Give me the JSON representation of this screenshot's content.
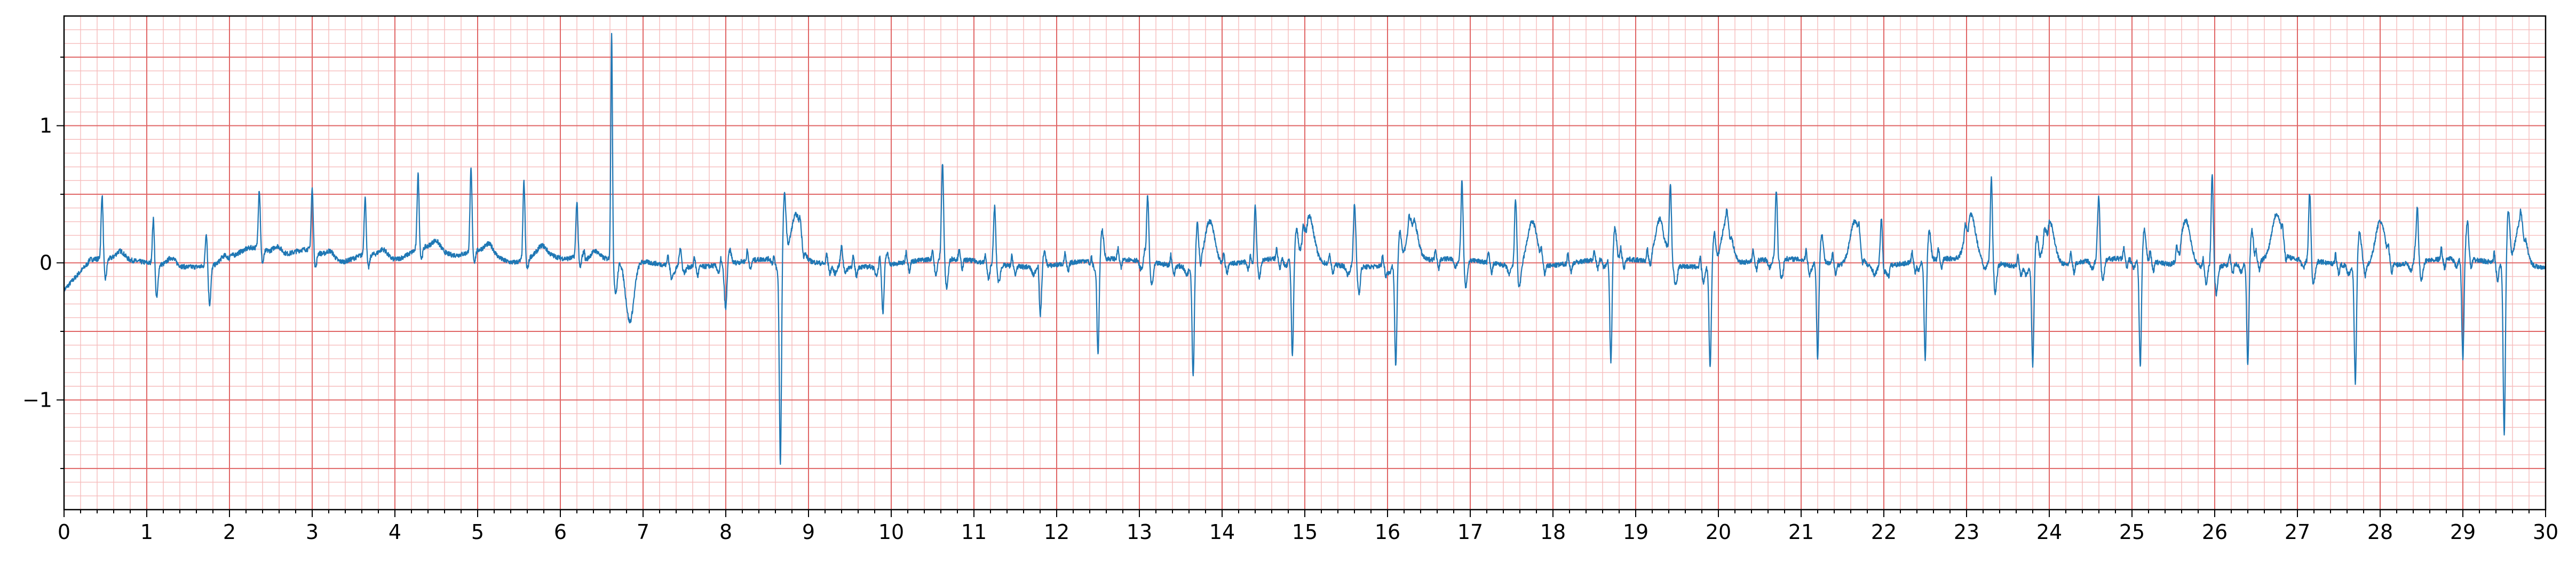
{
  "chart_data": {
    "type": "line",
    "title": "",
    "xlabel": "",
    "ylabel": "",
    "xlim": [
      0,
      30
    ],
    "ylim": [
      -1.8,
      1.8
    ],
    "x_ticks": [
      0,
      1,
      2,
      3,
      4,
      5,
      6,
      7,
      8,
      9,
      10,
      11,
      12,
      13,
      14,
      15,
      16,
      17,
      18,
      19,
      20,
      21,
      22,
      23,
      24,
      25,
      26,
      27,
      28,
      29,
      30
    ],
    "y_ticks": [
      {
        "value": 1,
        "label": "1"
      },
      {
        "value": 0,
        "label": "0"
      },
      {
        "value": -1,
        "label": "−1"
      }
    ],
    "grid": {
      "major_x": 1,
      "minor_x": 0.2,
      "major_y": 0.5,
      "minor_y": 0.1,
      "major_color": "#e06666",
      "minor_color": "#f6bcbc"
    },
    "line_color": "#1f77b4",
    "series": [
      {
        "name": "",
        "beats_segment1": {
          "x": [
            0.46,
            1.08,
            1.72,
            2.36,
            3.0,
            3.64,
            4.28,
            4.92,
            5.56,
            6.2
          ],
          "r": [
            0.47,
            0.33,
            0.25,
            0.43,
            0.45,
            0.42,
            0.55,
            0.6,
            0.57,
            0.4
          ],
          "s": [
            -0.15,
            -0.25,
            -0.28,
            -0.1,
            -0.12,
            -0.1,
            -0.08,
            -0.08,
            -0.08,
            -0.1
          ]
        },
        "tall_spike": {
          "x": 6.62,
          "peak": 1.65,
          "trough": -0.45
        },
        "segment2_spikes": [
          {
            "x": 7.45,
            "v": 0.14
          },
          {
            "x": 8.0,
            "v": -0.32
          },
          {
            "x": 8.66,
            "v": -1.5
          },
          {
            "x": 9.4,
            "v": 0.14
          },
          {
            "x": 9.9,
            "v": -0.28
          },
          {
            "x": 10.62,
            "v": 0.7
          },
          {
            "x": 11.25,
            "v": 0.42
          },
          {
            "x": 11.8,
            "v": -0.35
          },
          {
            "x": 12.5,
            "v": -0.7
          },
          {
            "x": 13.1,
            "v": 0.55
          },
          {
            "x": 13.65,
            "v": -0.8
          },
          {
            "x": 14.4,
            "v": 0.42
          },
          {
            "x": 14.85,
            "v": -0.7
          },
          {
            "x": 15.6,
            "v": 0.45
          },
          {
            "x": 16.1,
            "v": -0.75
          },
          {
            "x": 16.9,
            "v": 0.5
          },
          {
            "x": 17.55,
            "v": 0.45
          },
          {
            "x": 18.7,
            "v": -0.75
          },
          {
            "x": 19.42,
            "v": 0.55
          },
          {
            "x": 19.9,
            "v": -0.75
          },
          {
            "x": 20.7,
            "v": 0.5
          },
          {
            "x": 21.2,
            "v": -0.7
          },
          {
            "x": 21.97,
            "v": 0.35
          },
          {
            "x": 22.5,
            "v": -0.72
          },
          {
            "x": 23.3,
            "v": 0.55
          },
          {
            "x": 23.8,
            "v": -0.72
          },
          {
            "x": 24.6,
            "v": 0.47
          },
          {
            "x": 25.1,
            "v": -0.78
          },
          {
            "x": 25.97,
            "v": 0.67
          },
          {
            "x": 26.4,
            "v": -0.75
          },
          {
            "x": 27.15,
            "v": 0.45
          },
          {
            "x": 27.7,
            "v": -0.85
          },
          {
            "x": 28.45,
            "v": 0.45
          },
          {
            "x": 29.0,
            "v": -0.73
          },
          {
            "x": 29.5,
            "v": -1.25
          }
        ],
        "t_waves": [
          8.85,
          13.85,
          15.05,
          16.3,
          17.75,
          19.3,
          20.1,
          21.65,
          23.05,
          24.0,
          25.65,
          26.75,
          28.0,
          29.7
        ]
      }
    ]
  }
}
